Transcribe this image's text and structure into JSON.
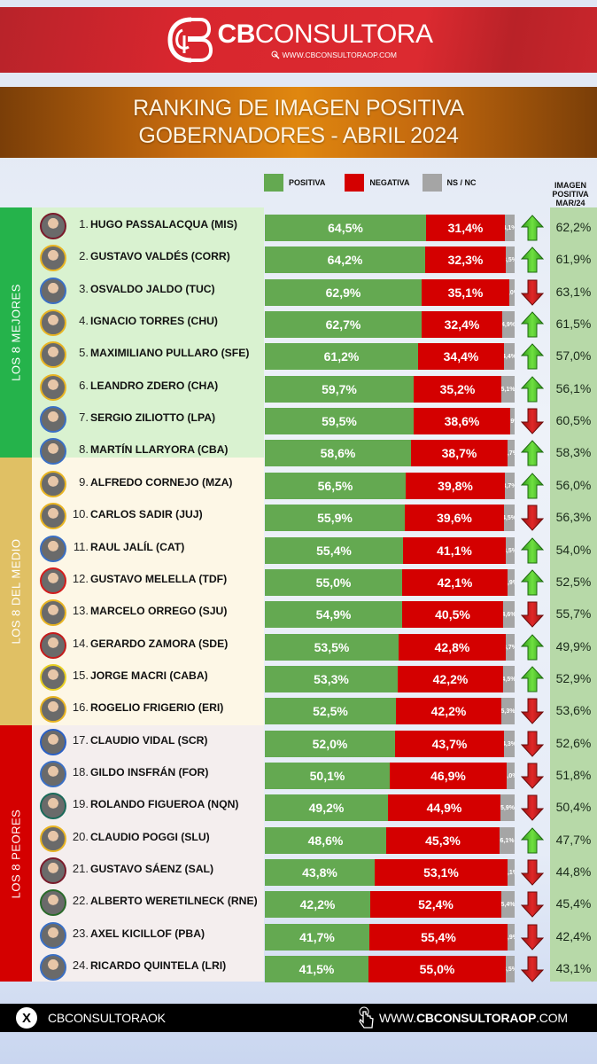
{
  "brand": {
    "name_bold": "CB",
    "name_light": "CONSULTORA",
    "url": "WWW.CBCONSULTORAOP.COM",
    "bar_color": "#d8262e"
  },
  "title": {
    "line1": "RANKING DE IMAGEN POSITIVA",
    "line2": "GOBERNADORES - ABRIL 2024"
  },
  "legend": {
    "items": [
      {
        "label": "POSITIVA",
        "color": "#64a951"
      },
      {
        "label": "NEGATIVA",
        "color": "#d40000"
      },
      {
        "label": "NS / NC",
        "color": "#a5a5a5"
      }
    ],
    "prev_header": [
      "IMAGEN",
      "POSITIVA",
      "MAR/24"
    ]
  },
  "groups": [
    {
      "label": "LOS 8 MEJORES",
      "color": "#25b34b",
      "bg": "#d9f2d0"
    },
    {
      "label": "LOS 8 DEL MEDIO",
      "color": "#e0c064",
      "bg": "#fdf7e6"
    },
    {
      "label": "LOS 8 PEORES",
      "color": "#d40000",
      "bg": "#f4eeee"
    }
  ],
  "footer": {
    "social_handle": "CBCONSULTORAOK",
    "url_prefix": "WWW.",
    "url_bold": "CBCONSULTORAOP",
    "url_suffix": ".COM"
  },
  "chart_data": {
    "type": "bar",
    "orientation": "horizontal-stacked",
    "title": "RANKING DE IMAGEN POSITIVA - GOBERNADORES - ABRIL 2024",
    "xlabel": "",
    "ylabel": "",
    "xlim": [
      0,
      100
    ],
    "legend": [
      "POSITIVA",
      "NEGATIVA",
      "NS / NC"
    ],
    "categories": [
      "1. HUGO PASSALACQUA (MIS)",
      "2. GUSTAVO VALDÉS (CORR)",
      "3. OSVALDO JALDO (TUC)",
      "4. IGNACIO TORRES (CHU)",
      "5. MAXIMILIANO PULLARO (SFE)",
      "6. LEANDRO ZDERO (CHA)",
      "7. SERGIO ZILIOTTO (LPA)",
      "8. MARTÍN LLARYORA (CBA)",
      "9. ALFREDO CORNEJO (MZA)",
      "10. CARLOS SADIR (JUJ)",
      "11. RAUL JALÍL (CAT)",
      "12. GUSTAVO MELELLA (TDF)",
      "13. MARCELO ORREGO (SJU)",
      "14. GERARDO ZAMORA (SDE)",
      "15. JORGE MACRI (CABA)",
      "16. ROGELIO FRIGERIO (ERI)",
      "17. CLAUDIO VIDAL (SCR)",
      "18. GILDO INSFRÁN (FOR)",
      "19. ROLANDO FIGUEROA (NQN)",
      "20. CLAUDIO POGGI (SLU)",
      "21. GUSTAVO SÁENZ (SAL)",
      "22. ALBERTO WERETILNECK (RNE)",
      "23. AXEL KICILLOF (PBA)",
      "24. RICARDO QUINTELA (LRI)"
    ],
    "series": [
      {
        "name": "POSITIVA",
        "values": [
          64.5,
          64.2,
          62.9,
          62.7,
          61.2,
          59.7,
          59.5,
          58.6,
          56.5,
          55.9,
          55.4,
          55.0,
          54.9,
          53.5,
          53.3,
          52.5,
          52.0,
          50.1,
          49.2,
          48.6,
          43.8,
          42.2,
          41.7,
          41.5
        ]
      },
      {
        "name": "NEGATIVA",
        "values": [
          31.4,
          32.3,
          35.1,
          32.4,
          34.4,
          35.2,
          38.6,
          38.7,
          39.8,
          39.6,
          41.1,
          42.1,
          40.5,
          42.8,
          42.2,
          42.2,
          43.7,
          46.9,
          44.9,
          45.3,
          53.1,
          52.4,
          55.4,
          55.0
        ]
      },
      {
        "name": "NS / NC",
        "values": [
          4.1,
          3.5,
          2.0,
          4.9,
          4.4,
          5.1,
          1.9,
          2.7,
          3.7,
          4.5,
          3.5,
          2.9,
          4.6,
          3.7,
          4.5,
          5.3,
          4.3,
          3.0,
          5.9,
          6.1,
          3.1,
          5.4,
          2.9,
          3.5
        ]
      },
      {
        "name": "IMAGEN POSITIVA MAR/24",
        "values": [
          62.2,
          61.9,
          63.1,
          61.5,
          57.0,
          56.1,
          60.5,
          58.3,
          56.0,
          56.3,
          54.0,
          52.5,
          55.7,
          49.9,
          52.9,
          53.6,
          52.6,
          51.8,
          50.4,
          47.7,
          44.8,
          45.4,
          42.4,
          43.1
        ]
      }
    ],
    "trend": [
      "up",
      "up",
      "down",
      "up",
      "up",
      "up",
      "down",
      "up",
      "up",
      "down",
      "up",
      "up",
      "down",
      "up",
      "up",
      "down",
      "down",
      "down",
      "down",
      "up",
      "down",
      "down",
      "down",
      "down"
    ]
  },
  "rows": [
    {
      "rank": "1.",
      "name": "HUGO PASSALACQUA (MIS)",
      "pos": "64,5%",
      "neg": "31,4%",
      "ns": "4,1%",
      "prev": "62,2%",
      "trend": "up",
      "ring": "#7a1a2a",
      "pos_w": 64.5,
      "neg_w": 31.4,
      "ns_w": 4.1
    },
    {
      "rank": "2.",
      "name": "GUSTAVO VALDÉS (CORR)",
      "pos": "64,2%",
      "neg": "32,3%",
      "ns": "3,5%",
      "prev": "61,9%",
      "trend": "up",
      "ring": "#e8b422",
      "pos_w": 64.2,
      "neg_w": 32.3,
      "ns_w": 3.5
    },
    {
      "rank": "3.",
      "name": "OSVALDO JALDO (TUC)",
      "pos": "62,9%",
      "neg": "35,1%",
      "ns": "2,0%",
      "prev": "63,1%",
      "trend": "down",
      "ring": "#3a6fc4",
      "pos_w": 62.9,
      "neg_w": 35.1,
      "ns_w": 2.0
    },
    {
      "rank": "4.",
      "name": "IGNACIO TORRES (CHU)",
      "pos": "62,7%",
      "neg": "32,4%",
      "ns": "4,9%",
      "prev": "61,5%",
      "trend": "up",
      "ring": "#e8b422",
      "pos_w": 62.7,
      "neg_w": 32.4,
      "ns_w": 4.9
    },
    {
      "rank": "5.",
      "name": "MAXIMILIANO PULLARO (SFE)",
      "pos": "61,2%",
      "neg": "34,4%",
      "ns": "4,4%",
      "prev": "57,0%",
      "trend": "up",
      "ring": "#e8b422",
      "pos_w": 61.2,
      "neg_w": 34.4,
      "ns_w": 4.4
    },
    {
      "rank": "6.",
      "name": "LEANDRO ZDERO (CHA)",
      "pos": "59,7%",
      "neg": "35,2%",
      "ns": "5,1%",
      "prev": "56,1%",
      "trend": "up",
      "ring": "#e8b422",
      "pos_w": 59.7,
      "neg_w": 35.2,
      "ns_w": 5.1
    },
    {
      "rank": "7.",
      "name": "SERGIO ZILIOTTO (LPA)",
      "pos": "59,5%",
      "neg": "38,6%",
      "ns": "1,9%",
      "prev": "60,5%",
      "trend": "down",
      "ring": "#3a6fc4",
      "pos_w": 59.5,
      "neg_w": 38.6,
      "ns_w": 1.9
    },
    {
      "rank": "8.",
      "name": "MARTÍN LLARYORA (CBA)",
      "pos": "58,6%",
      "neg": "38,7%",
      "ns": "2,7%",
      "prev": "58,3%",
      "trend": "up",
      "ring": "#3a6fc4",
      "pos_w": 58.6,
      "neg_w": 38.7,
      "ns_w": 2.7
    },
    {
      "rank": "9.",
      "name": "ALFREDO CORNEJO (MZA)",
      "pos": "56,5%",
      "neg": "39,8%",
      "ns": "3,7%",
      "prev": "56,0%",
      "trend": "up",
      "ring": "#e8b422",
      "pos_w": 56.5,
      "neg_w": 39.8,
      "ns_w": 3.7
    },
    {
      "rank": "10.",
      "name": "CARLOS SADIR (JUJ)",
      "pos": "55,9%",
      "neg": "39,6%",
      "ns": "4,5%",
      "prev": "56,3%",
      "trend": "down",
      "ring": "#e8b422",
      "pos_w": 55.9,
      "neg_w": 39.6,
      "ns_w": 4.5
    },
    {
      "rank": "11.",
      "name": "RAUL JALÍL (CAT)",
      "pos": "55,4%",
      "neg": "41,1%",
      "ns": "3,5%",
      "prev": "54,0%",
      "trend": "up",
      "ring": "#3a6fc4",
      "pos_w": 55.4,
      "neg_w": 41.1,
      "ns_w": 3.5
    },
    {
      "rank": "12.",
      "name": "GUSTAVO MELELLA (TDF)",
      "pos": "55,0%",
      "neg": "42,1%",
      "ns": "2,9%",
      "prev": "52,5%",
      "trend": "up",
      "ring": "#d41c1c",
      "pos_w": 55.0,
      "neg_w": 42.1,
      "ns_w": 2.9
    },
    {
      "rank": "13.",
      "name": "MARCELO ORREGO (SJU)",
      "pos": "54,9%",
      "neg": "40,5%",
      "ns": "4,6%",
      "prev": "55,7%",
      "trend": "down",
      "ring": "#e8b422",
      "pos_w": 54.9,
      "neg_w": 40.5,
      "ns_w": 4.6
    },
    {
      "rank": "14.",
      "name": "GERARDO ZAMORA (SDE)",
      "pos": "53,5%",
      "neg": "42,8%",
      "ns": "3,7%",
      "prev": "49,9%",
      "trend": "up",
      "ring": "#c41c1c",
      "pos_w": 53.5,
      "neg_w": 42.8,
      "ns_w": 3.7
    },
    {
      "rank": "15.",
      "name": "JORGE MACRI (CABA)",
      "pos": "53,3%",
      "neg": "42,2%",
      "ns": "4,5%",
      "prev": "52,9%",
      "trend": "up",
      "ring": "#e8d022",
      "pos_w": 53.3,
      "neg_w": 42.2,
      "ns_w": 4.5
    },
    {
      "rank": "16.",
      "name": "ROGELIO FRIGERIO (ERI)",
      "pos": "52,5%",
      "neg": "42,2%",
      "ns": "5,3%",
      "prev": "53,6%",
      "trend": "down",
      "ring": "#e8b422",
      "pos_w": 52.5,
      "neg_w": 42.2,
      "ns_w": 5.3
    },
    {
      "rank": "17.",
      "name": "CLAUDIO VIDAL (SCR)",
      "pos": "52,0%",
      "neg": "43,7%",
      "ns": "4,3%",
      "prev": "52,6%",
      "trend": "down",
      "ring": "#2a5fc4",
      "pos_w": 52.0,
      "neg_w": 43.7,
      "ns_w": 4.3
    },
    {
      "rank": "18.",
      "name": "GILDO INSFRÁN (FOR)",
      "pos": "50,1%",
      "neg": "46,9%",
      "ns": "3,0%",
      "prev": "51,8%",
      "trend": "down",
      "ring": "#3a6fc4",
      "pos_w": 50.1,
      "neg_w": 46.9,
      "ns_w": 3.0
    },
    {
      "rank": "19.",
      "name": "ROLANDO FIGUEROA (NQN)",
      "pos": "49,2%",
      "neg": "44,9%",
      "ns": "5,9%",
      "prev": "50,4%",
      "trend": "down",
      "ring": "#1a6a5a",
      "pos_w": 49.2,
      "neg_w": 44.9,
      "ns_w": 5.9
    },
    {
      "rank": "20.",
      "name": "CLAUDIO POGGI (SLU)",
      "pos": "48,6%",
      "neg": "45,3%",
      "ns": "6,1%",
      "prev": "47,7%",
      "trend": "up",
      "ring": "#e8b422",
      "pos_w": 48.6,
      "neg_w": 45.3,
      "ns_w": 6.1
    },
    {
      "rank": "21.",
      "name": "GUSTAVO SÁENZ (SAL)",
      "pos": "43,8%",
      "neg": "53,1%",
      "ns": "3,1%",
      "prev": "44,8%",
      "trend": "down",
      "ring": "#7a1a2a",
      "pos_w": 43.8,
      "neg_w": 53.1,
      "ns_w": 3.1
    },
    {
      "rank": "22.",
      "name": "ALBERTO WERETILNECK (RNE)",
      "pos": "42,2%",
      "neg": "52,4%",
      "ns": "5,4%",
      "prev": "45,4%",
      "trend": "down",
      "ring": "#2a6a2a",
      "pos_w": 42.2,
      "neg_w": 52.4,
      "ns_w": 5.4
    },
    {
      "rank": "23.",
      "name": "AXEL KICILLOF (PBA)",
      "pos": "41,7%",
      "neg": "55,4%",
      "ns": "2,9%",
      "prev": "42,4%",
      "trend": "down",
      "ring": "#3a6fc4",
      "pos_w": 41.7,
      "neg_w": 55.4,
      "ns_w": 2.9
    },
    {
      "rank": "24.",
      "name": "RICARDO QUINTELA (LRI)",
      "pos": "41,5%",
      "neg": "55,0%",
      "ns": "3,5%",
      "prev": "43,1%",
      "trend": "down",
      "ring": "#3a6fc4",
      "pos_w": 41.5,
      "neg_w": 55.0,
      "ns_w": 3.5
    }
  ]
}
